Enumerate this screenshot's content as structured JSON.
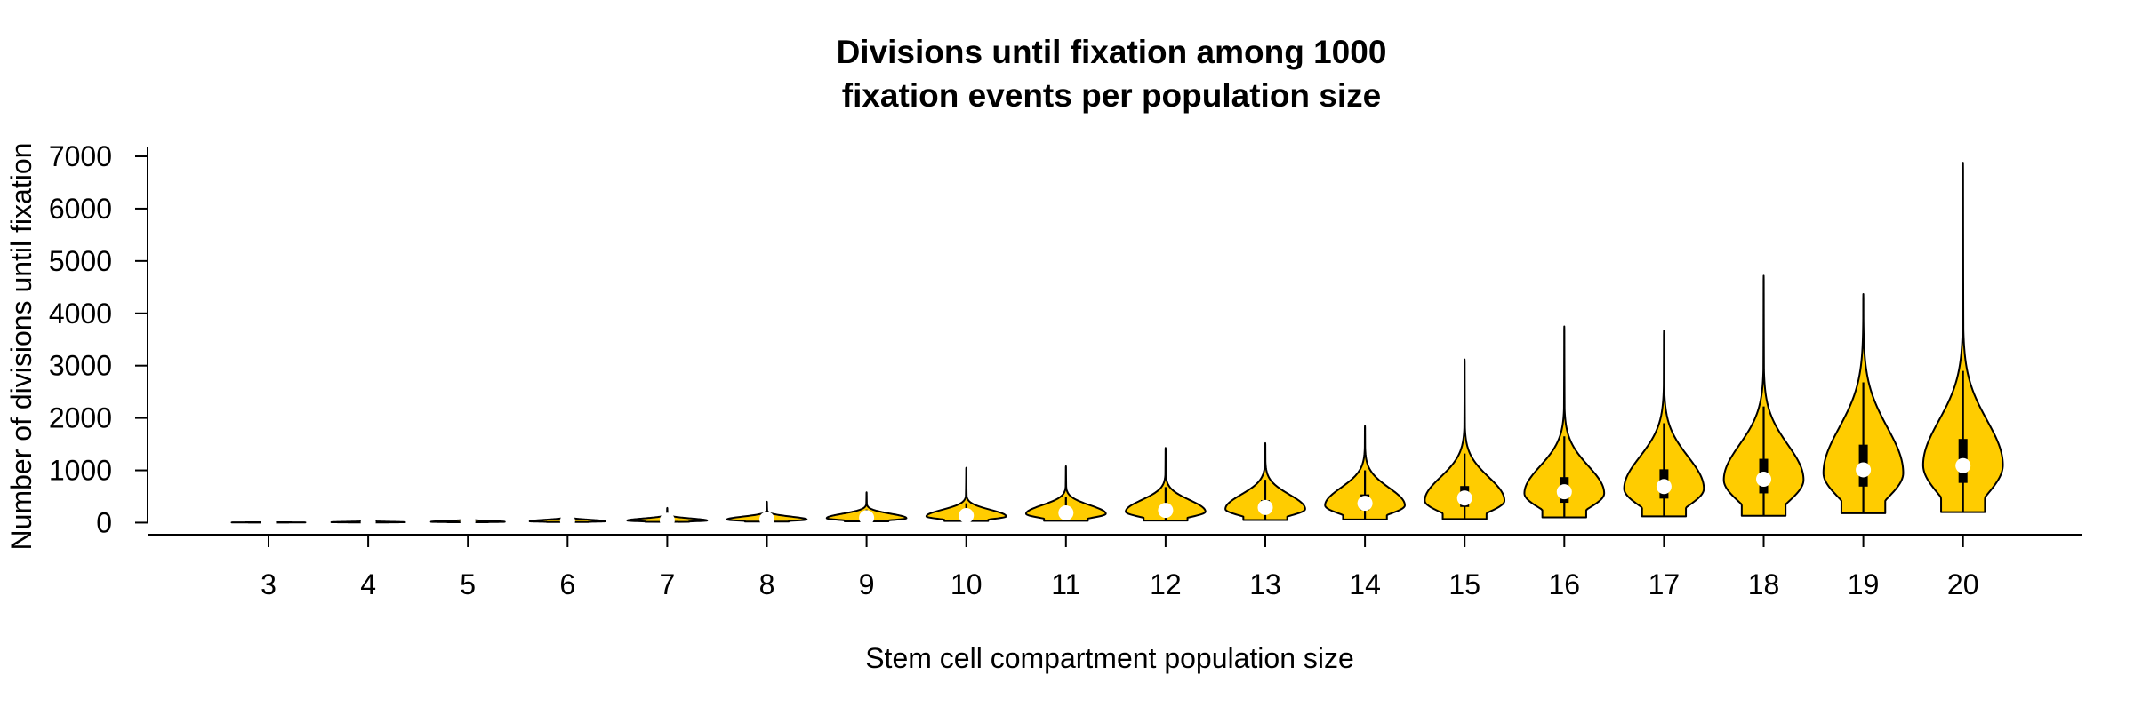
{
  "chart_data": {
    "type": "violin",
    "title_lines": [
      "Divisions until fixation among 1000",
      "fixation events per population size"
    ],
    "xlabel": "Stem cell compartment population size",
    "ylabel": "Number of divisions until fixation",
    "ylim": [
      -230,
      7170
    ],
    "yticks": [
      0,
      1000,
      2000,
      3000,
      4000,
      5000,
      6000,
      7000
    ],
    "fill_color": "#FFCC00",
    "outline_color": "#000000",
    "median_marker_color": "#FFFFFF",
    "grid": false,
    "legend": "none",
    "categories": [
      "3",
      "4",
      "5",
      "6",
      "7",
      "8",
      "9",
      "10",
      "11",
      "12",
      "13",
      "14",
      "15",
      "16",
      "17",
      "18",
      "19",
      "20"
    ],
    "violins": [
      {
        "label": "3",
        "min": 2,
        "q1": 3,
        "median": 4,
        "q3": 6,
        "whisker_high": 8,
        "max": 15,
        "mode": 4,
        "max_half_width": 0.37
      },
      {
        "label": "4",
        "min": 4,
        "q1": 7,
        "median": 10,
        "q3": 14,
        "whisker_high": 25,
        "max": 30,
        "mode": 8,
        "max_half_width": 0.37
      },
      {
        "label": "5",
        "min": 8,
        "q1": 14,
        "median": 20,
        "q3": 28,
        "whisker_high": 45,
        "max": 60,
        "mode": 16,
        "max_half_width": 0.37
      },
      {
        "label": "6",
        "min": 12,
        "q1": 22,
        "median": 30,
        "q3": 45,
        "whisker_high": 80,
        "max": 110,
        "mode": 25,
        "max_half_width": 0.38
      },
      {
        "label": "7",
        "min": 15,
        "q1": 32,
        "median": 45,
        "q3": 65,
        "whisker_high": 120,
        "max": 280,
        "mode": 40,
        "max_half_width": 0.4
      },
      {
        "label": "8",
        "min": 20,
        "q1": 45,
        "median": 65,
        "q3": 95,
        "whisker_high": 170,
        "max": 400,
        "mode": 60,
        "max_half_width": 0.4
      },
      {
        "label": "9",
        "min": 25,
        "q1": 65,
        "median": 95,
        "q3": 140,
        "whisker_high": 250,
        "max": 580,
        "mode": 85,
        "max_half_width": 0.4
      },
      {
        "label": "10",
        "min": 30,
        "q1": 90,
        "median": 135,
        "q3": 200,
        "whisker_high": 370,
        "max": 1050,
        "mode": 120,
        "max_half_width": 0.4
      },
      {
        "label": "11",
        "min": 35,
        "q1": 120,
        "median": 185,
        "q3": 270,
        "whisker_high": 500,
        "max": 1080,
        "mode": 170,
        "max_half_width": 0.4
      },
      {
        "label": "12",
        "min": 40,
        "q1": 150,
        "median": 235,
        "q3": 340,
        "whisker_high": 680,
        "max": 1430,
        "mode": 210,
        "max_half_width": 0.4
      },
      {
        "label": "13",
        "min": 50,
        "q1": 190,
        "median": 290,
        "q3": 430,
        "whisker_high": 820,
        "max": 1520,
        "mode": 260,
        "max_half_width": 0.4
      },
      {
        "label": "14",
        "min": 60,
        "q1": 240,
        "median": 370,
        "q3": 540,
        "whisker_high": 1000,
        "max": 1850,
        "mode": 330,
        "max_half_width": 0.4
      },
      {
        "label": "15",
        "min": 70,
        "q1": 300,
        "median": 470,
        "q3": 700,
        "whisker_high": 1320,
        "max": 3120,
        "mode": 420,
        "max_half_width": 0.4
      },
      {
        "label": "16",
        "min": 100,
        "q1": 380,
        "median": 590,
        "q3": 870,
        "whisker_high": 1650,
        "max": 3750,
        "mode": 560,
        "max_half_width": 0.4
      },
      {
        "label": "17",
        "min": 120,
        "q1": 460,
        "median": 690,
        "q3": 1020,
        "whisker_high": 1900,
        "max": 3670,
        "mode": 650,
        "max_half_width": 0.4
      },
      {
        "label": "18",
        "min": 130,
        "q1": 560,
        "median": 830,
        "q3": 1220,
        "whisker_high": 2220,
        "max": 4720,
        "mode": 820,
        "max_half_width": 0.4
      },
      {
        "label": "19",
        "min": 180,
        "q1": 690,
        "median": 1010,
        "q3": 1490,
        "whisker_high": 2680,
        "max": 4370,
        "mode": 950,
        "max_half_width": 0.4
      },
      {
        "label": "20",
        "min": 200,
        "q1": 760,
        "median": 1090,
        "q3": 1600,
        "whisker_high": 2900,
        "max": 6880,
        "mode": 1100,
        "max_half_width": 0.4
      }
    ]
  }
}
